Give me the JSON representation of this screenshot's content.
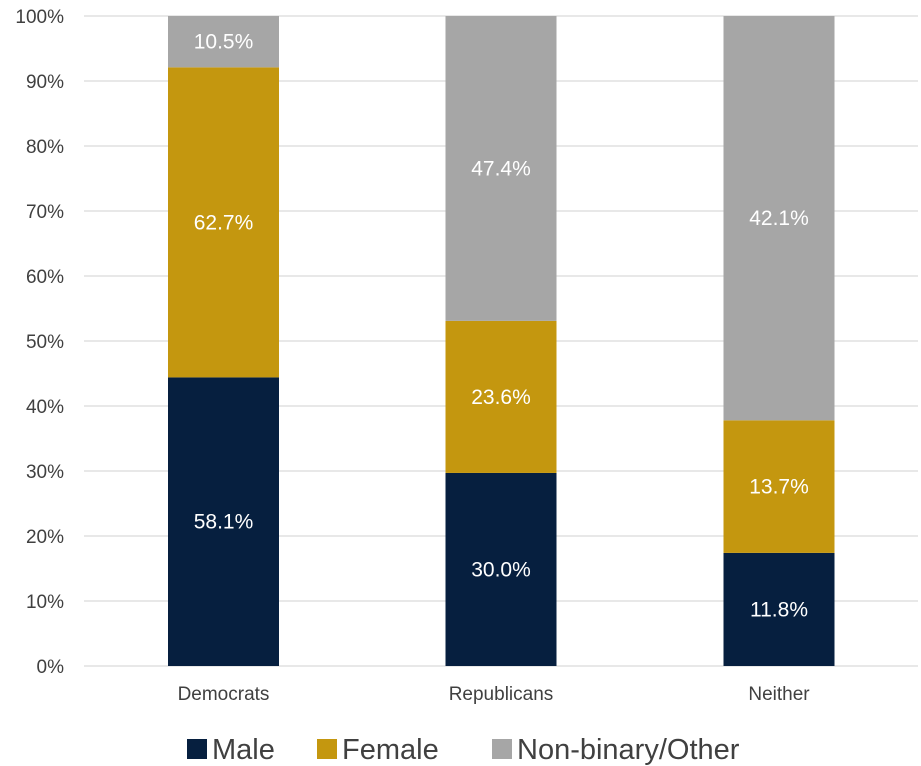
{
  "chart_data": {
    "type": "bar",
    "stacked": true,
    "categories": [
      "Democrats",
      "Republicans",
      "Neither"
    ],
    "series": [
      {
        "name": "Male",
        "color": "#061f3f",
        "values": [
          44.4,
          29.7,
          17.4
        ],
        "labels": [
          "58.1%",
          "30.0%",
          "11.8%"
        ]
      },
      {
        "name": "Female",
        "color": "#c4970f",
        "values": [
          47.7,
          23.4,
          20.4
        ],
        "labels": [
          "62.7%",
          "23.6%",
          "13.7%"
        ]
      },
      {
        "name": "Non-binary/Other",
        "color": "#a6a6a6",
        "values": [
          7.9,
          46.9,
          62.2
        ],
        "labels": [
          "10.5%",
          "47.4%",
          "42.1%"
        ]
      }
    ],
    "y_ticks": [
      "0%",
      "10%",
      "20%",
      "30%",
      "40%",
      "50%",
      "60%",
      "70%",
      "80%",
      "90%",
      "100%"
    ],
    "ylim": [
      0,
      100
    ],
    "grid": true,
    "gridline_color": "#d9d9d9",
    "legend": "bottom",
    "title": "",
    "xlabel": "",
    "ylabel": ""
  }
}
